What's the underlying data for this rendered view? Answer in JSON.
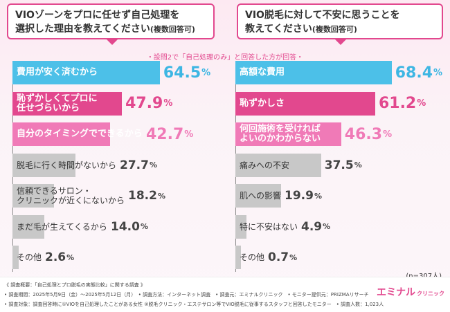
{
  "questions": {
    "left": {
      "line1": "VIOゾーンをプロに任せず自己処理を",
      "line2": "選択した理由を教えてください",
      "suffix": "(複数回答可)"
    },
    "right": {
      "line1": "VIO脱毛に対して不安に思うことを",
      "line2": "教えてください",
      "suffix": "(複数回答可)"
    }
  },
  "subtitle": "・設問2で「自己処理のみ」と回答した方が回答・",
  "sample_size": "(n=307人)",
  "colors": {
    "blue": "#4cc0e8",
    "pink": "#e2488e",
    "pink_light": "#f07ab7",
    "gray": "#c8c8c8"
  },
  "chart_data": [
    {
      "type": "bar",
      "orientation": "horizontal",
      "categories": [
        "費用が安く済むから",
        "恥ずかしくてプロに\n任せづらいから",
        "自分のタイミングでできるから",
        "脱毛に行く時間がないから",
        "信頼できるサロン・\nクリニックが近くにないから",
        "まだ毛が生えてくるから",
        "その他"
      ],
      "values": [
        64.5,
        47.9,
        42.7,
        27.7,
        18.2,
        14.0,
        2.6
      ],
      "value_labels": [
        "64.5",
        "47.9",
        "42.7",
        "27.7",
        "18.2",
        "14.0",
        "2.6"
      ],
      "unit": "%",
      "xlim": [
        0,
        100
      ]
    },
    {
      "type": "bar",
      "orientation": "horizontal",
      "categories": [
        "高額な費用",
        "恥ずかしさ",
        "何回施術を受ければ\nよいのかわからない",
        "痛みへの不安",
        "肌への影響",
        "特に不安はない",
        "その他"
      ],
      "values": [
        68.4,
        61.2,
        46.3,
        37.5,
        19.9,
        4.9,
        0.7
      ],
      "value_labels": [
        "68.4",
        "61.2",
        "46.3",
        "37.5",
        "19.9",
        "4.9",
        "0.7"
      ],
      "unit": "%",
      "xlim": [
        0,
        100
      ]
    }
  ],
  "footer": {
    "line1": "《 調査概要：「自己処理とプロ脱毛の実態比較」に関する調査 》",
    "line2": "• 調査期間：2025年5月9日（金）〜2025年5月12日（月）　• 調査方法：インターネット調査　• 調査元：エミナルクリニック　• モニター提供元：PRIZMAリサーチ",
    "line3": "• 調査対象：調査回答時に①VIOを自己処理したことがある女性 ②脱毛クリニック・エステサロン等でVIO脱毛に従事するスタッフと回答したモニター　• 調査人数：1,023人"
  },
  "logo": {
    "main": "エミナル",
    "sub": "クリニック"
  }
}
